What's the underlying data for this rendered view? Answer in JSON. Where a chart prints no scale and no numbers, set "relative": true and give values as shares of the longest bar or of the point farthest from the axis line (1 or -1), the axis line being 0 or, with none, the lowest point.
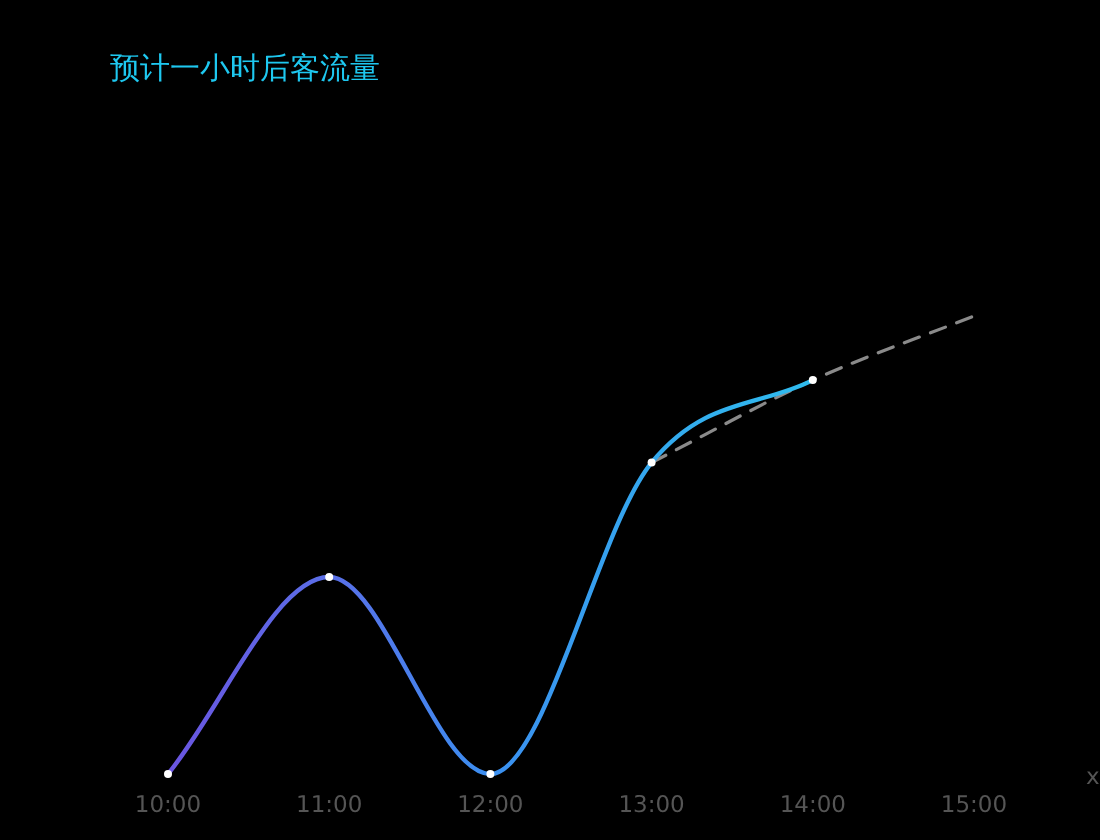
{
  "chart_data": {
    "type": "line",
    "title": "预计一小时后客流量",
    "xlabel": "x",
    "relative": true,
    "categories": [
      "10:00",
      "11:00",
      "12:00",
      "13:00",
      "14:00",
      "15:00"
    ],
    "marker": "circle",
    "grid": false,
    "series": [
      {
        "colors": [
          "#6a55e0",
          "#5a6fe8",
          "#3b8ff0",
          "#34a8ee",
          "#2fbcee",
          null
        ],
        "values": [
          0,
          0.43,
          0,
          0.68,
          0.86,
          null
        ],
        "line_style": "solid"
      },
      {
        "color": "#8a8a8a",
        "values": [
          null,
          null,
          null,
          0.68,
          0.86,
          1
        ],
        "line_style": "dashed",
        "marker": "none"
      }
    ]
  }
}
